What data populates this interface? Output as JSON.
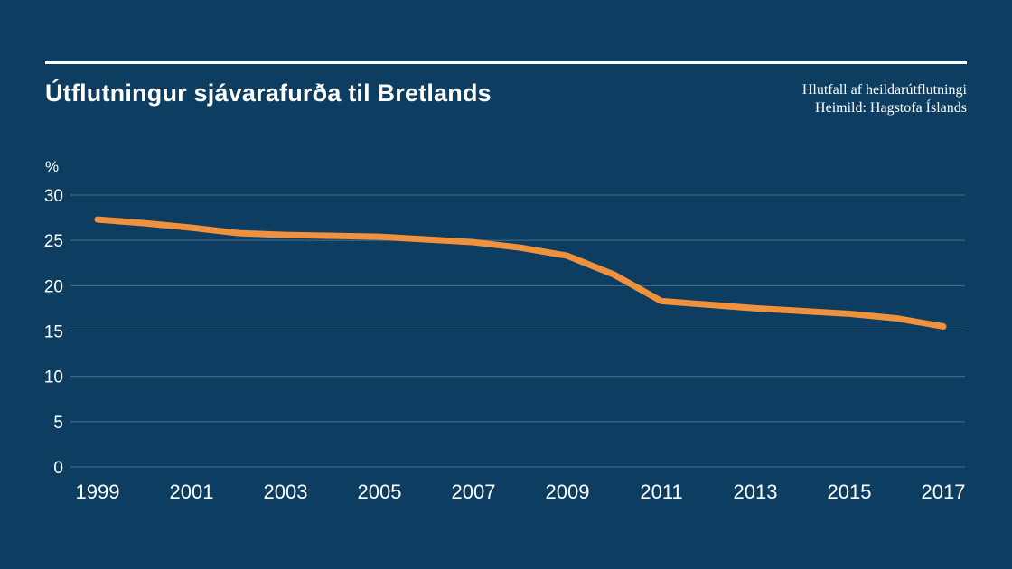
{
  "header": {
    "title": "Útflutningur sjávarafurða til Bretlands",
    "note_line1": "Hlutfall af heildarútflutningi",
    "note_line2": "Heimild: Hagstofa Íslands"
  },
  "chart_data": {
    "type": "line",
    "title": "Útflutningur sjávarafurða til Bretlands",
    "subtitle": "Hlutfall af heildarútflutningi",
    "source": "Heimild: Hagstofa Íslands",
    "ylabel": "%",
    "x": [
      1999,
      2000,
      2001,
      2002,
      2003,
      2004,
      2005,
      2006,
      2007,
      2008,
      2009,
      2010,
      2011,
      2012,
      2013,
      2014,
      2015,
      2016,
      2017
    ],
    "values": [
      27.3,
      26.9,
      26.4,
      25.8,
      25.6,
      25.5,
      25.4,
      25.1,
      24.8,
      24.2,
      23.3,
      21.2,
      18.3,
      17.9,
      17.5,
      17.2,
      16.9,
      16.4,
      15.5
    ],
    "x_ticks": [
      "1999",
      "2001",
      "2003",
      "2005",
      "2007",
      "2009",
      "2011",
      "2013",
      "2015",
      "2017"
    ],
    "y_ticks": [
      "0",
      "5",
      "10",
      "15",
      "20",
      "25",
      "30"
    ],
    "ylim": [
      0,
      30
    ],
    "grid": true,
    "legend": "none"
  },
  "colors": {
    "background": "#0d3d61",
    "line": "#f0913e",
    "grid": "#4a708e",
    "text": "#ffffff"
  }
}
